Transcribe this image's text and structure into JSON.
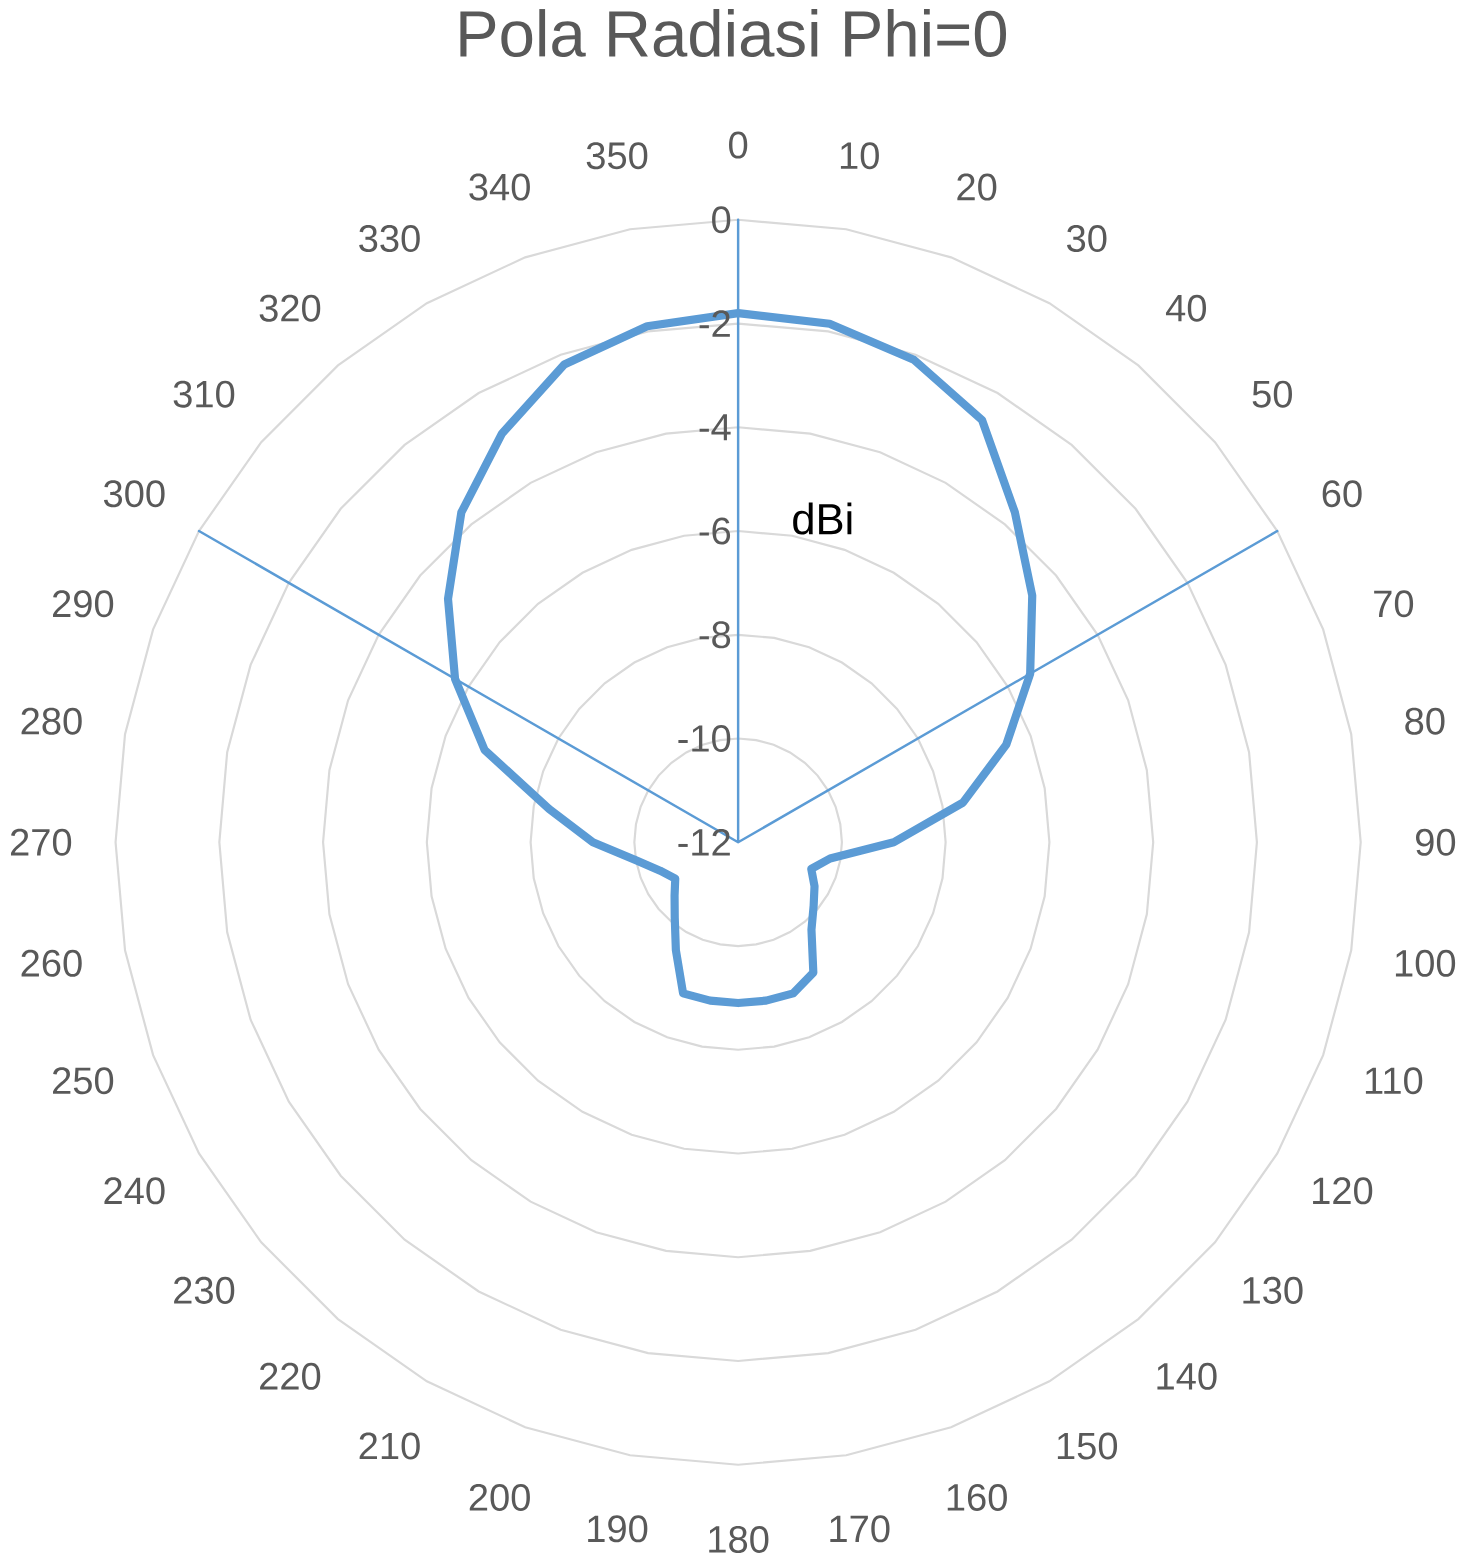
{
  "chart_data": {
    "type": "radar",
    "title": "Pola Radiasi Phi=0",
    "ylabel": "dBi",
    "categories": [
      "0",
      "10",
      "20",
      "30",
      "40",
      "50",
      "60",
      "70",
      "80",
      "90",
      "100",
      "110",
      "120",
      "130",
      "140",
      "150",
      "160",
      "170",
      "180",
      "190",
      "200",
      "210",
      "220",
      "230",
      "240",
      "250",
      "260",
      "270",
      "280",
      "290",
      "300",
      "310",
      "320",
      "330",
      "340",
      "350"
    ],
    "series": [
      {
        "color": "#5b9bd5",
        "values": [
          -1.8,
          -1.85,
          -2.1,
          -2.6,
          -3.7,
          -4.6,
          -5.5,
          -6.5,
          -7.6,
          -9.0,
          -10.2,
          -10.5,
          -10.3,
          -10.1,
          -9.8,
          -9.1,
          -8.9,
          -8.9,
          -8.9,
          -8.9,
          -8.9,
          -9.6,
          -10.1,
          -10.4,
          -10.6,
          -10.4,
          -10.0,
          -9.2,
          -8.3,
          -6.8,
          -5.7,
          -4.7,
          -3.7,
          -2.9,
          -2.2,
          -1.9
        ]
      },
      {
        "color": "#5b9bd5",
        "values": [
          0,
          -12,
          -12,
          -12,
          -12,
          -12,
          0,
          -12,
          -12,
          -12,
          -12,
          -12,
          -12,
          -12,
          -12,
          -12,
          -12,
          -12,
          -12,
          -12,
          -12,
          -12,
          -12,
          -12,
          -12,
          -12,
          -12,
          -12,
          -12,
          -12,
          0,
          -12,
          -12,
          -12,
          -12,
          -12
        ]
      }
    ],
    "ylim": [
      -12,
      0
    ],
    "yticks": [
      -12,
      -10,
      -8,
      -6,
      -4,
      -2,
      0
    ],
    "grid": true,
    "marker": "none",
    "line_style": "solid"
  }
}
